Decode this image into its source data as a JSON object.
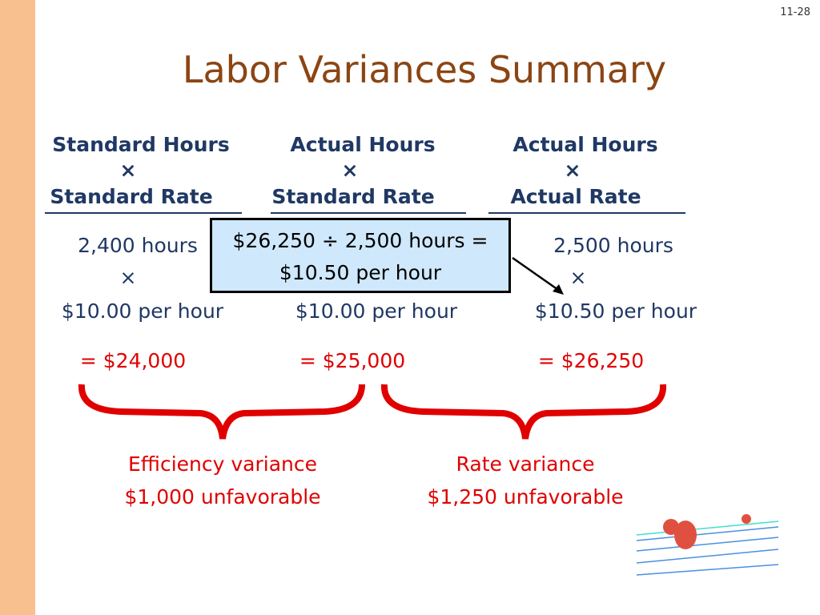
{
  "slide_number": "11-28",
  "title": "Labor Variances Summary",
  "columns": [
    {
      "header_top": "Standard Hours",
      "times": "×",
      "header_bottom": "Standard Rate",
      "quantity": "2,400 hours",
      "times2": "×",
      "rate": "$10.00 per hour",
      "total": "= $24,000"
    },
    {
      "header_top": "Actual Hours",
      "times": "×",
      "header_bottom": "Standard Rate",
      "quantity": null,
      "times2": null,
      "rate": "$10.00 per hour",
      "total": "= $25,000"
    },
    {
      "header_top": "Actual Hours",
      "times": "×",
      "header_bottom": "Actual Rate",
      "quantity": "2,500 hours",
      "times2": "×",
      "rate": "$10.50 per hour",
      "total": "= $26,250"
    }
  ],
  "callout": {
    "line1": "$26,250 ÷ 2,500 hours =",
    "line2": "$10.50 per hour"
  },
  "variances": [
    {
      "name": "Efficiency variance",
      "amount": "$1,000 unfavorable"
    },
    {
      "name": "Rate variance",
      "amount": "$1,250 unfavorable"
    }
  ]
}
